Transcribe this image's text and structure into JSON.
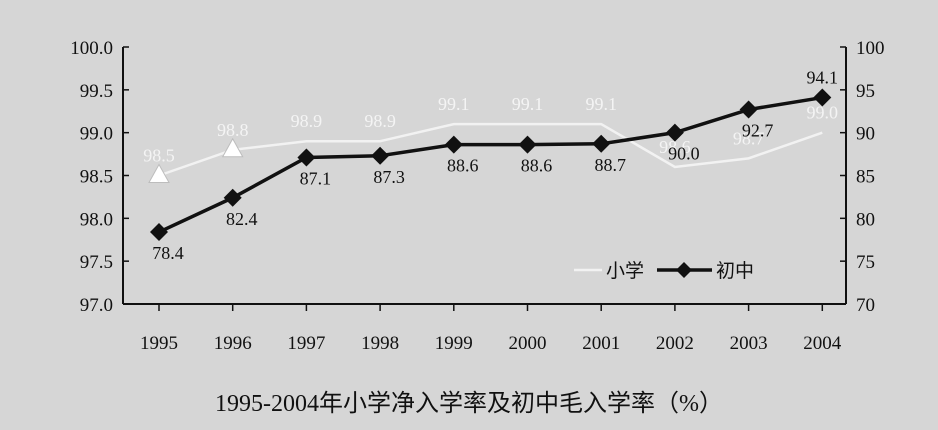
{
  "chart_data": {
    "type": "line",
    "title": "1995-2004年小学净入学率及初中毛入学率（%）",
    "categories": [
      "1995",
      "1996",
      "1997",
      "1998",
      "1999",
      "2000",
      "2001",
      "2002",
      "2003",
      "2004"
    ],
    "left_axis": {
      "ylim": [
        97.0,
        100.0
      ],
      "ticks": [
        "97.0",
        "97.5",
        "98.0",
        "98.5",
        "99.0",
        "99.5",
        "100.0"
      ]
    },
    "right_axis": {
      "ylim": [
        70,
        100
      ],
      "ticks": [
        "70",
        "75",
        "80",
        "85",
        "90",
        "95",
        "100"
      ]
    },
    "series": [
      {
        "name": "小学",
        "axis": "left",
        "color": "#f2f2f2",
        "marker": "triangle",
        "values": [
          98.5,
          98.8,
          98.9,
          98.9,
          99.1,
          99.1,
          99.1,
          98.6,
          98.7,
          99.0
        ],
        "labels": [
          "98.5",
          "98.8",
          "98.9",
          "98.9",
          "99.1",
          "99.1",
          "99.1",
          "98.6",
          "98.7",
          "99.0"
        ]
      },
      {
        "name": "初中",
        "axis": "right",
        "color": "#111111",
        "marker": "diamond",
        "values": [
          78.4,
          82.4,
          87.1,
          87.3,
          88.6,
          88.6,
          88.7,
          90.0,
          92.7,
          94.1
        ],
        "labels": [
          "78.4",
          "82.4",
          "87.1",
          "87.3",
          "88.6",
          "88.6",
          "88.7",
          "90.0",
          "92.7",
          "94.1"
        ]
      }
    ],
    "legend": {
      "placement": "bottom-right",
      "items": [
        "小学",
        "初中"
      ]
    }
  }
}
